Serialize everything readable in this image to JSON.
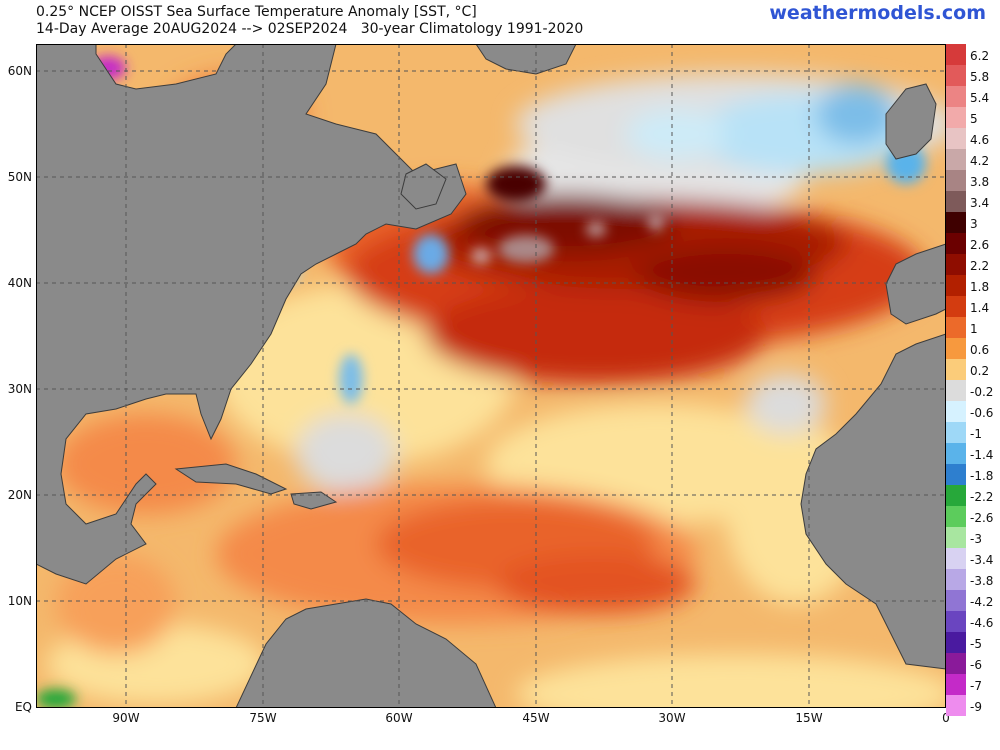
{
  "header": {
    "title_line1": "0.25° NCEP OISST Sea Surface Temperature Anomaly [SST, °C]",
    "title_line2": "14-Day Average 20AUG2024 --> 02SEP2024   30-year Climatology 1991-2020",
    "brand": "weathermodels.com"
  },
  "map": {
    "region": "North Atlantic",
    "lat_labels": [
      "60N",
      "50N",
      "40N",
      "30N",
      "20N",
      "10N",
      "EQ"
    ],
    "lon_labels": [
      "90W",
      "75W",
      "60W",
      "45W",
      "30W",
      "15W",
      "0"
    ],
    "colors": {
      "land": "#8a8a8a",
      "border": "#3c3c3c",
      "grid": "#555555"
    }
  },
  "colorbar": {
    "labels": [
      "6.2",
      "5.8",
      "5.4",
      "5",
      "4.6",
      "4.2",
      "3.8",
      "3.4",
      "3",
      "2.6",
      "2.2",
      "1.8",
      "1.4",
      "1",
      "0.6",
      "0.2",
      "-0.2",
      "-0.6",
      "-1",
      "-1.4",
      "-1.8",
      "-2.2",
      "-2.6",
      "-3",
      "-3.4",
      "-3.8",
      "-4.2",
      "-4.6",
      "-5",
      "-6",
      "-7",
      "-9"
    ],
    "colors": [
      "#d63a3a",
      "#e25a5a",
      "#ec8484",
      "#f2aaaa",
      "#e8c4c4",
      "#c9a8a8",
      "#a88484",
      "#7e5a5a",
      "#3f0000",
      "#6b0000",
      "#8f0d00",
      "#b22000",
      "#d33c10",
      "#ec6a2a",
      "#f7993e",
      "#fbcc7a",
      "#dcdcdc",
      "#d6f2ff",
      "#9ed8f7",
      "#5ab3ea",
      "#2e7fcf",
      "#27a83a",
      "#5ccc5c",
      "#a8e6a0",
      "#d8d2f2",
      "#b8a8e6",
      "#9075d4",
      "#6a45c0",
      "#4a1aa0",
      "#8a1a9a",
      "#c42ac8",
      "#ee8cee"
    ]
  }
}
